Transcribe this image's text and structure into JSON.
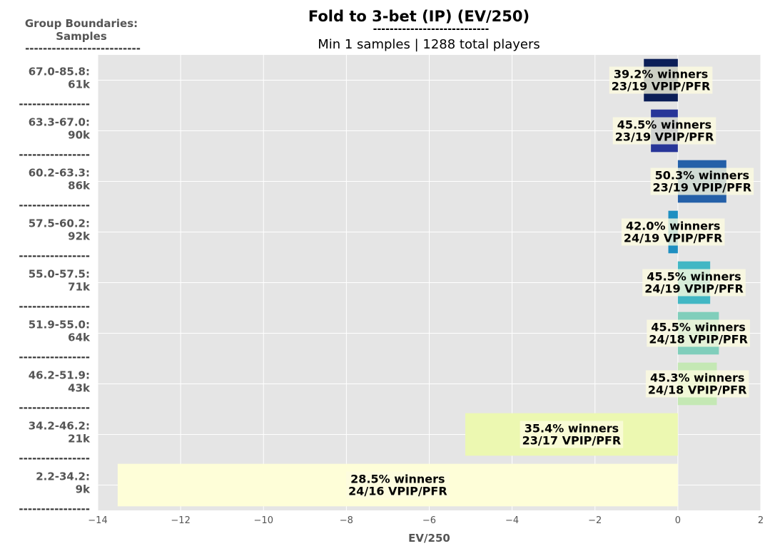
{
  "chart_data": {
    "type": "bar",
    "orientation": "horizontal",
    "title": "Fold to 3-bet (IP) (EV/250)",
    "title_underline": "----------------------------",
    "subtitle": "Min 1 samples | 1288 total players",
    "group_header": "Group Boundaries:\nSamples",
    "group_header_underline": "--------------------------",
    "row_separator": "----------------",
    "xlabel": "EV/250",
    "ylabel": "",
    "xlim": [
      -14,
      2
    ],
    "xticks": [
      -14,
      -12,
      -10,
      -8,
      -6,
      -4,
      -2,
      0,
      2
    ],
    "xtick_labels": [
      "−14",
      "−12",
      "−10",
      "−8",
      "−6",
      "−4",
      "−2",
      "0",
      "2"
    ],
    "grid": true,
    "categories": [
      "67.0-85.8:\n61k",
      "63.3-67.0:\n90k",
      "60.2-63.3:\n86k",
      "57.5-60.2:\n92k",
      "55.0-57.5:\n71k",
      "51.9-55.0:\n64k",
      "46.2-51.9:\n43k",
      "34.2-46.2:\n21k",
      "2.2-34.2:\n9k"
    ],
    "values": [
      -0.82,
      -0.65,
      1.17,
      -0.23,
      0.78,
      0.99,
      0.94,
      -5.13,
      -13.52
    ],
    "colors": [
      "#0b1e57",
      "#273598",
      "#2460a8",
      "#1e8fc1",
      "#42b7c4",
      "#80cebb",
      "#c4e8b4",
      "#ecf8b1",
      "#fefed8"
    ],
    "annotations": [
      "39.2% winners\n23/19 VPIP/PFR",
      "45.5% winners\n23/19 VPIP/PFR",
      "50.3% winners\n23/19 VPIP/PFR",
      "42.0% winners\n24/19 VPIP/PFR",
      "45.5% winners\n24/19 VPIP/PFR",
      "45.5% winners\n24/18 VPIP/PFR",
      "45.3% winners\n24/18 VPIP/PFR",
      "35.4% winners\n23/17 VPIP/PFR",
      "28.5% winners\n24/16 VPIP/PFR"
    ]
  }
}
